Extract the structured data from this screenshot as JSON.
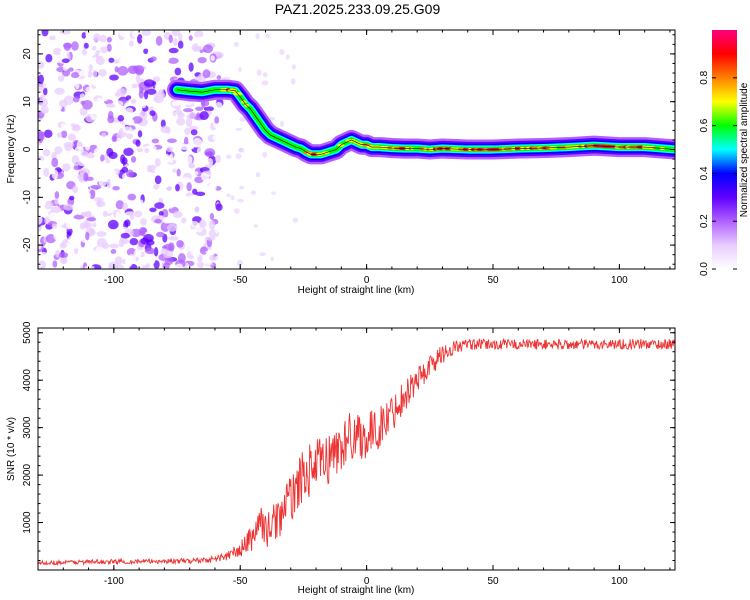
{
  "page": {
    "title": "PAZ1.2025.233.09.25.G09"
  },
  "chart_data": [
    {
      "type": "heatmap",
      "title": "PAZ1.2025.233.09.25.G09",
      "xlabel": "Height of straight line (km)",
      "ylabel": "Frequency (Hz)",
      "xlim": [
        -130,
        122
      ],
      "ylim": [
        -25,
        25
      ],
      "xticks": [
        -100,
        -50,
        0,
        50,
        100
      ],
      "yticks": [
        -20,
        -10,
        0,
        10,
        20
      ],
      "xtick_labels": [
        "-100",
        "-50",
        "0",
        "50",
        "100"
      ],
      "ytick_labels": [
        "-20",
        "-10",
        "0",
        "10",
        "20"
      ],
      "colorbar": {
        "label": "Normalized spectral amplitude",
        "range": [
          0,
          1
        ],
        "ticks": [
          0.0,
          0.2,
          0.4,
          0.6,
          0.8
        ],
        "tick_labels": [
          "0.0",
          "0.2",
          "0.4",
          "0.6",
          "0.8"
        ],
        "colormap": [
          "#ffffff",
          "#e8ccff",
          "#b060ff",
          "#6000ff",
          "#0000ff",
          "#00ffff",
          "#00ff00",
          "#ffff00",
          "#ff8000",
          "#ff0000",
          "#ff0080"
        ]
      },
      "noise_region": {
        "x_range": [
          -130,
          -58
        ],
        "y_range": [
          -25,
          25
        ],
        "typical_amplitude": 0.08
      },
      "ridge": {
        "x": [
          -75,
          -70,
          -65,
          -60,
          -55,
          -52,
          -50,
          -48,
          -46,
          -44,
          -42,
          -40,
          -38,
          -36,
          -34,
          -32,
          -30,
          -28,
          -26,
          -24,
          -22,
          -20,
          -18,
          -15,
          -12,
          -10,
          -8,
          -6,
          -4,
          -2,
          0,
          2,
          5,
          10,
          15,
          20,
          25,
          30,
          40,
          50,
          60,
          70,
          80,
          90,
          100,
          110,
          122
        ],
        "frequency": [
          12.5,
          12.2,
          12.0,
          12.5,
          12.5,
          12.3,
          11.0,
          9.5,
          8.5,
          7.0,
          5.5,
          4.0,
          3.0,
          2.5,
          2.0,
          1.5,
          1.0,
          0.5,
          0.2,
          -0.5,
          -1.0,
          -1.0,
          -1.0,
          -0.5,
          0.0,
          1.0,
          1.5,
          2.0,
          1.5,
          1.0,
          1.0,
          0.5,
          0.5,
          0.3,
          0.2,
          0.2,
          0.0,
          0.2,
          0.0,
          0.0,
          0.2,
          0.3,
          0.5,
          0.8,
          0.5,
          0.5,
          0.0
        ],
        "amplitude": [
          0.35,
          0.5,
          0.55,
          0.5,
          0.85,
          0.8,
          0.6,
          0.75,
          0.55,
          0.6,
          0.5,
          0.55,
          0.45,
          0.55,
          0.45,
          0.6,
          0.5,
          0.55,
          0.6,
          0.8,
          0.85,
          0.85,
          0.7,
          0.55,
          0.55,
          0.6,
          0.7,
          0.75,
          0.65,
          0.7,
          0.85,
          0.75,
          0.75,
          0.8,
          0.85,
          0.75,
          0.9,
          0.85,
          0.9,
          0.9,
          0.85,
          0.8,
          0.8,
          0.95,
          0.9,
          0.8,
          0.7
        ],
        "width_hz": 2.4
      }
    },
    {
      "type": "line",
      "xlabel": "Height of straight line (km)",
      "ylabel": "SNR (10 * v/v)",
      "xlim": [
        -130,
        122
      ],
      "ylim": [
        0,
        5100
      ],
      "xticks": [
        -100,
        -50,
        0,
        50,
        100
      ],
      "yticks": [
        1000,
        2000,
        3000,
        4000,
        5000
      ],
      "xtick_labels": [
        "-100",
        "-50",
        "0",
        "50",
        "100"
      ],
      "ytick_labels": [
        "1000",
        "2000",
        "3000",
        "4000",
        "5000"
      ],
      "series": [
        {
          "name": "SNR",
          "color": "#ee3333",
          "x": [
            -130,
            -110,
            -90,
            -70,
            -60,
            -55,
            -50,
            -45,
            -42,
            -40,
            -35,
            -30,
            -25,
            -20,
            -15,
            -10,
            -5,
            0,
            5,
            10,
            15,
            20,
            25,
            30,
            35,
            40,
            50,
            60,
            80,
            100,
            122
          ],
          "values": [
            150,
            170,
            180,
            190,
            230,
            300,
            420,
            700,
            1100,
            800,
            1100,
            1500,
            2000,
            2200,
            2350,
            2600,
            2900,
            2800,
            3000,
            3300,
            3700,
            4000,
            4300,
            4550,
            4700,
            4750,
            4750,
            4760,
            4750,
            4760,
            4760
          ],
          "noise_amplitude": [
            40,
            50,
            50,
            55,
            70,
            100,
            180,
            300,
            350,
            350,
            450,
            500,
            550,
            550,
            550,
            550,
            550,
            500,
            450,
            400,
            350,
            300,
            250,
            200,
            150,
            120,
            110,
            110,
            110,
            110,
            110
          ]
        }
      ]
    }
  ]
}
